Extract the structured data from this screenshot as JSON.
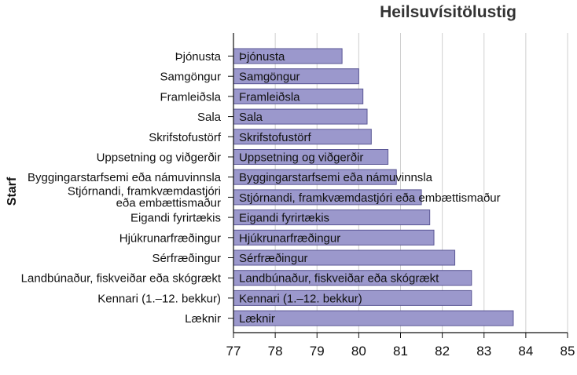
{
  "chart_data": {
    "type": "bar",
    "orientation": "horizontal",
    "title": "Heilsuvísitölustig",
    "xlabel": "",
    "ylabel": "Starf",
    "xlim": [
      77,
      85
    ],
    "xticks": [
      77,
      78,
      79,
      80,
      81,
      82,
      83,
      84,
      85
    ],
    "grid": "vertical",
    "bar_color": "#9b98cc",
    "bar_edge_color": "#5a5694",
    "categories": [
      "Þjónusta",
      "Samgöngur",
      "Framleiðsla",
      "Sala",
      "Skrifstofustörf",
      "Uppsetning og viðgerðir",
      "Byggingarstarfsemi eða námuvinnsla",
      "Stjórnandi, framkvæmdastjóri eða embættismaður",
      "Eigandi fyrirtækis",
      "Hjúkrunarfræðingur",
      "Sérfræðingur",
      "Landbúnaður, fiskveiðar eða skógrækt",
      "Kennari (1.–12. bekkur)",
      "Læknir"
    ],
    "tick_labels": [
      [
        "Þjónusta"
      ],
      [
        "Samgöngur"
      ],
      [
        "Framleiðsla"
      ],
      [
        "Sala"
      ],
      [
        "Skrifstofustörf"
      ],
      [
        "Uppsetning og viðgerðir"
      ],
      [
        "Byggingarstarfsemi eða námuvinnsla"
      ],
      [
        "Stjórnandi, framkvæmdastjóri",
        "eða embættismaður"
      ],
      [
        "Eigandi fyrirtækis"
      ],
      [
        "Hjúkrunarfræðingur"
      ],
      [
        "Sérfræðingur"
      ],
      [
        "Landbúnaður, fiskveiðar eða skógrækt"
      ],
      [
        "Kennari (1.–12. bekkur)"
      ],
      [
        "Læknir"
      ]
    ],
    "values": [
      79.6,
      80.0,
      80.1,
      80.2,
      80.3,
      80.7,
      80.9,
      81.5,
      81.7,
      81.8,
      82.3,
      82.7,
      82.7,
      83.7
    ]
  }
}
